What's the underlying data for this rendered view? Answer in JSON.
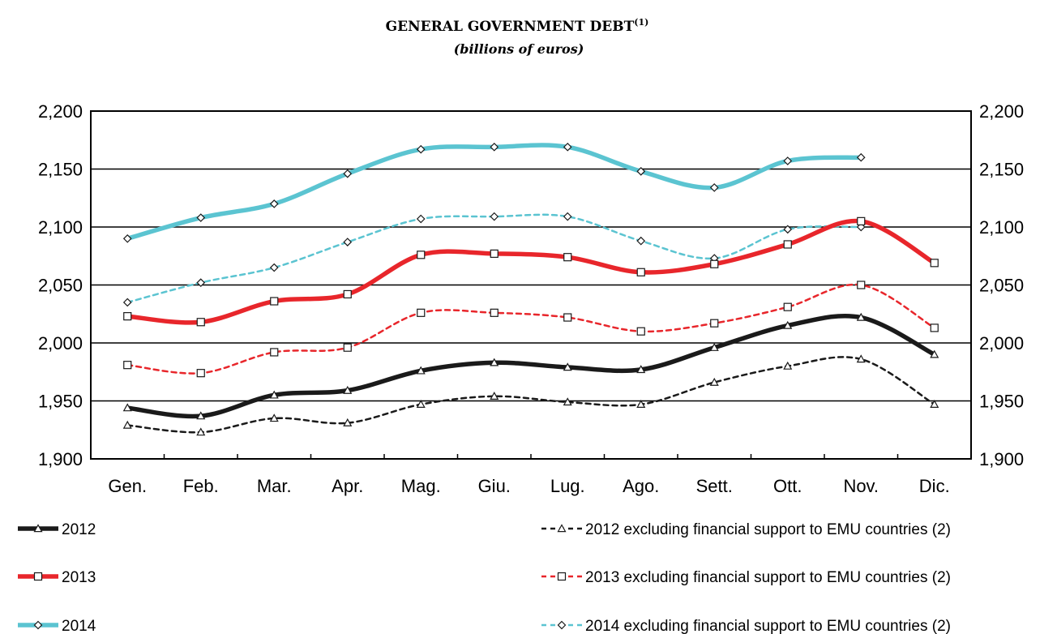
{
  "chart_data": {
    "type": "line",
    "title": "GENERAL GOVERNMENT DEBT",
    "title_superscript": "(1)",
    "subtitle": "(billions of euros)",
    "xlabel": "",
    "ylabel": "",
    "categories": [
      "Gen.",
      "Feb.",
      "Mar.",
      "Apr.",
      "Mag.",
      "Giu.",
      "Lug.",
      "Ago.",
      "Sett.",
      "Ott.",
      "Nov.",
      "Dic."
    ],
    "ylim": [
      1900,
      2200
    ],
    "yticks": [
      1900,
      1950,
      2000,
      2050,
      2100,
      2150,
      2200
    ],
    "ytick_labels": [
      "1,900",
      "1,950",
      "2,000",
      "2,050",
      "2,100",
      "2,150",
      "2,200"
    ],
    "grid": "horizontal",
    "legend_placement": "bottom",
    "series": [
      {
        "name": "2012",
        "color": "#1a1a1a",
        "style": "solid",
        "marker": "triangle",
        "values": [
          1944,
          1937,
          1955,
          1959,
          1976,
          1983,
          1979,
          1977,
          1996,
          2015,
          2022,
          1990
        ]
      },
      {
        "name": "2012 excluding financial support to EMU countries (2)",
        "color": "#1a1a1a",
        "style": "dashed",
        "marker": "triangle",
        "values": [
          1929,
          1923,
          1935,
          1931,
          1947,
          1954,
          1949,
          1947,
          1966,
          1980,
          1986,
          1947
        ]
      },
      {
        "name": "2013",
        "color": "#e8262b",
        "style": "solid",
        "marker": "square",
        "values": [
          2023,
          2018,
          2036,
          2042,
          2076,
          2077,
          2074,
          2061,
          2068,
          2085,
          2105,
          2069
        ]
      },
      {
        "name": "2013 excluding financial support to EMU countries (2)",
        "color": "#e8262b",
        "style": "dashed",
        "marker": "square",
        "values": [
          1981,
          1974,
          1992,
          1996,
          2026,
          2026,
          2022,
          2010,
          2017,
          2031,
          2050,
          2013
        ]
      },
      {
        "name": "2014",
        "color": "#5bc4d1",
        "style": "solid",
        "marker": "diamond",
        "values": [
          2090,
          2108,
          2120,
          2146,
          2167,
          2169,
          2169,
          2148,
          2134,
          2157,
          2160,
          null
        ]
      },
      {
        "name": "2014 excluding financial support to EMU countries (2)",
        "color": "#5bc4d1",
        "style": "dashed",
        "marker": "diamond",
        "values": [
          2035,
          2052,
          2065,
          2087,
          2107,
          2109,
          2109,
          2088,
          2073,
          2098,
          2100,
          null
        ]
      }
    ]
  }
}
